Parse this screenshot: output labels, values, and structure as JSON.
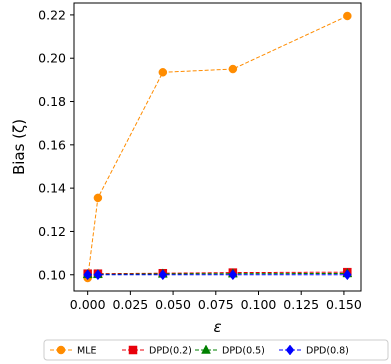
{
  "chart_data": {
    "type": "line",
    "xlabel": "ε",
    "ylabel": "Bias (ζ)",
    "x": [
      0.0,
      0.006,
      0.044,
      0.085,
      0.152
    ],
    "xlim": [
      -0.008,
      0.16
    ],
    "ylim": [
      0.0925,
      0.2255
    ],
    "xticks": [
      0.0,
      0.025,
      0.05,
      0.075,
      0.1,
      0.125,
      0.15
    ],
    "xtick_labels": [
      "0.000",
      "0.025",
      "0.050",
      "0.075",
      "0.100",
      "0.125",
      "0.150"
    ],
    "yticks": [
      0.1,
      0.12,
      0.14,
      0.16,
      0.18,
      0.2,
      0.22
    ],
    "ytick_labels": [
      "0.10",
      "0.12",
      "0.14",
      "0.16",
      "0.18",
      "0.20",
      "0.22"
    ],
    "grid": false,
    "legend_position": "bottom",
    "series": [
      {
        "name": "MLE",
        "color": "#ff8c00",
        "marker": "circle",
        "values": [
          0.0985,
          0.1355,
          0.1935,
          0.195,
          0.2195
        ]
      },
      {
        "name": "DPD(0.2)",
        "color": "#e8000b",
        "marker": "square",
        "values": [
          0.1005,
          0.1005,
          0.1007,
          0.101,
          0.1012
        ]
      },
      {
        "name": "DPD(0.5)",
        "color": "#008000",
        "marker": "triangle",
        "values": [
          0.1002,
          0.1002,
          0.1004,
          0.1005,
          0.1006
        ]
      },
      {
        "name": "DPD(0.8)",
        "color": "#0000ff",
        "marker": "diamond",
        "values": [
          0.1,
          0.1,
          0.1,
          0.1,
          0.1
        ]
      }
    ]
  }
}
